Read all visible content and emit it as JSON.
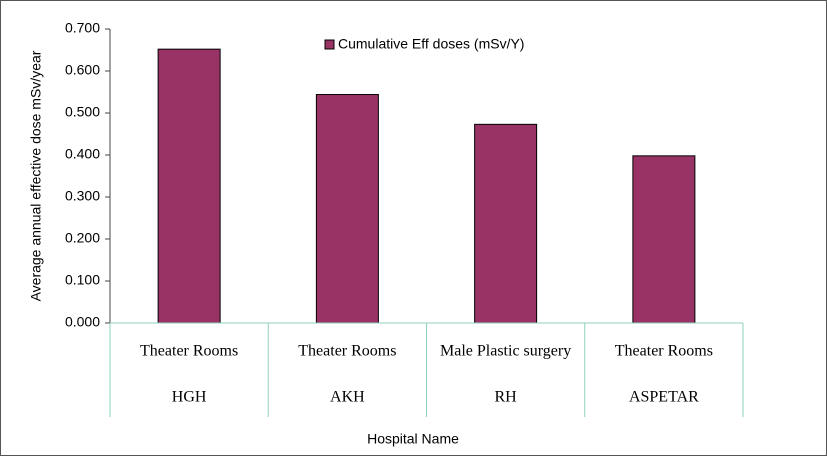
{
  "chart_data": {
    "type": "bar",
    "x_label": "Hospital Name",
    "y_label": "Average annual effective dose  mSv/year",
    "categories": [
      "Theater Rooms",
      "Theater Rooms",
      "Male Plastic surgery",
      "Theater Rooms"
    ],
    "groups": [
      "HGH",
      "AKH",
      "RH",
      "ASPETAR"
    ],
    "series": [
      {
        "name": "Cumulative Eff doses (mSv/Y)",
        "color": "#993366",
        "values": [
          0.652,
          0.544,
          0.473,
          0.398
        ]
      }
    ],
    "ylim": [
      0,
      0.7
    ],
    "yticks": [
      {
        "value": 0,
        "label": "0.000"
      },
      {
        "value": 0.1,
        "label": "0.100"
      },
      {
        "value": 0.2,
        "label": "0.200"
      },
      {
        "value": 0.3,
        "label": "0.300"
      },
      {
        "value": 0.4,
        "label": "0.400"
      },
      {
        "value": 0.5,
        "label": "0.500"
      },
      {
        "value": 0.6,
        "label": "0.600"
      },
      {
        "value": 0.7,
        "label": "0.700"
      }
    ],
    "grid": false,
    "legend": "top"
  }
}
